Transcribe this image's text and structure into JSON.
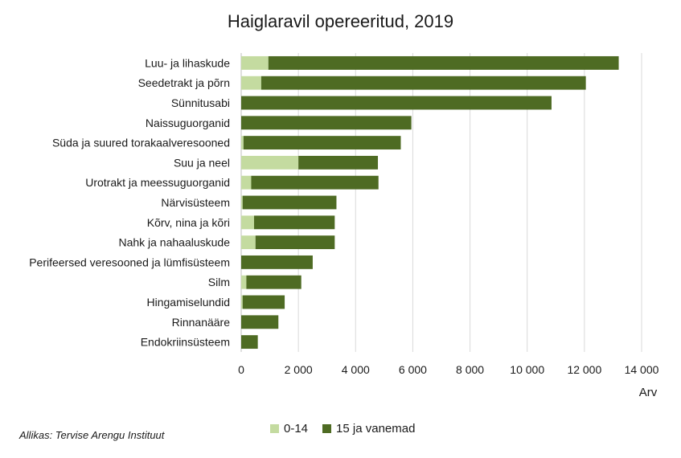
{
  "chart_data": {
    "type": "bar",
    "orientation": "horizontal",
    "stacked": true,
    "title": "Haiglaravil opereeritud, 2019",
    "xlabel": "Arv",
    "ylabel": "",
    "xlim": [
      0,
      14000
    ],
    "x_ticks": [
      0,
      2000,
      4000,
      6000,
      8000,
      10000,
      12000,
      14000
    ],
    "x_tick_labels": [
      "0",
      "2 000",
      "4 000",
      "6 000",
      "8 000",
      "10 000",
      "12 000",
      "14 000"
    ],
    "grid": "vertical",
    "legend_position": "bottom",
    "categories": [
      "Luu- ja lihaskude",
      "Seedetrakt ja põrn",
      "Sünnitusabi",
      "Naissuguorganid",
      "Süda ja suured torakaalveresooned",
      "Suu ja neel",
      "Urotrakt ja meessuguorganid",
      "Närvisüsteem",
      "Kõrv, nina ja kõri",
      "Nahk ja nahaaluskude",
      "Perifeersed veresooned ja lümfisüsteem",
      "Silm",
      "Hingamiselundid",
      "Rinnanääre",
      "Endokriinsüsteem"
    ],
    "series": [
      {
        "name": "0-14",
        "color": "#c4dba0",
        "values": [
          950,
          700,
          0,
          0,
          80,
          2000,
          350,
          50,
          450,
          500,
          0,
          180,
          50,
          0,
          0
        ]
      },
      {
        "name": "15 ja vanemad",
        "color": "#4e6b23",
        "values": [
          12250,
          11350,
          10850,
          5950,
          5500,
          2780,
          4450,
          3280,
          2820,
          2770,
          2500,
          1920,
          1470,
          1300,
          580
        ]
      }
    ]
  },
  "source": "Allikas: Tervise Arengu Instituut"
}
